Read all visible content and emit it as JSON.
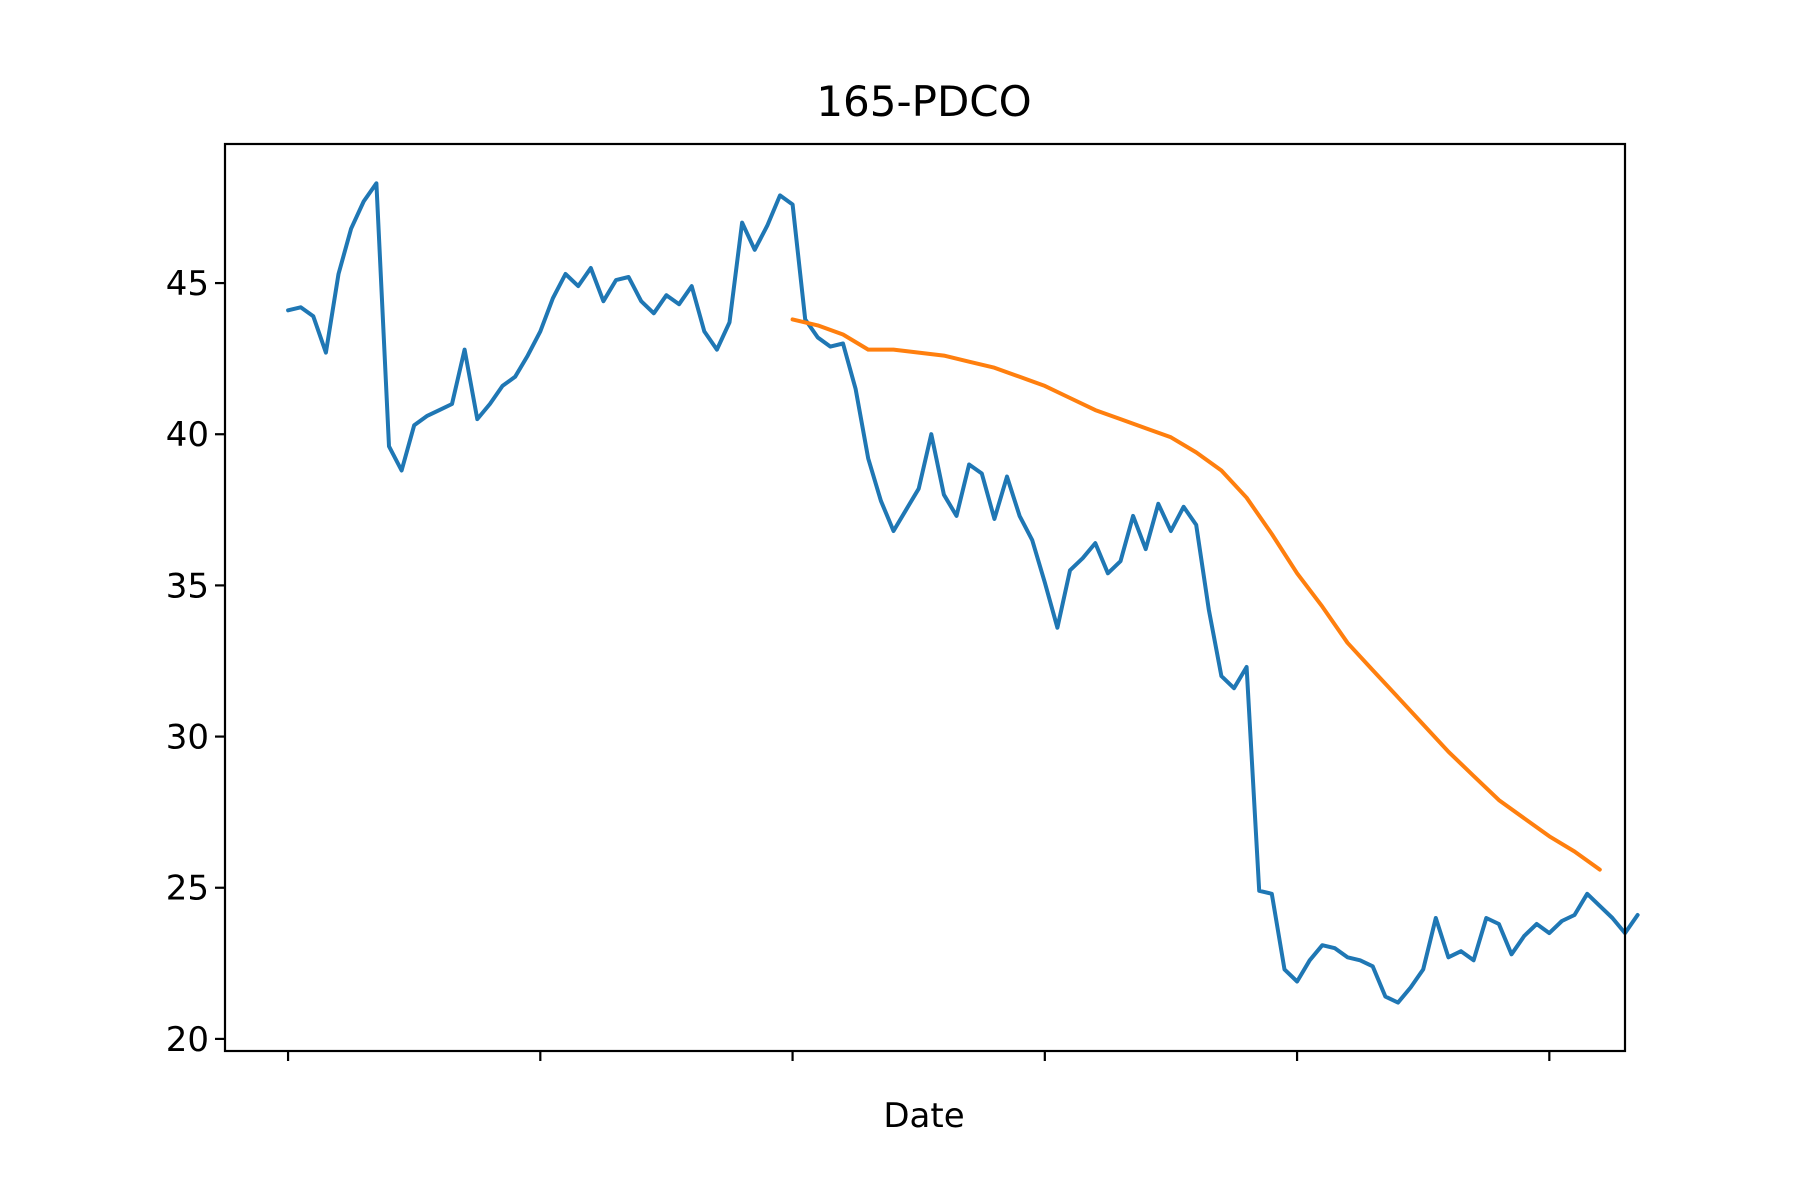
{
  "chart_data": {
    "type": "line",
    "title": "165-PDCO",
    "xlabel": "Date",
    "ylabel": "",
    "ylim": [
      19.6,
      49.6
    ],
    "yticks": [
      20,
      25,
      30,
      35,
      40,
      45
    ],
    "xlim": [
      -25,
      530
    ],
    "xticks": [
      0,
      100,
      200,
      300,
      400,
      500
    ],
    "xtick_labels": [
      "",
      "",
      "",
      "",
      "",
      ""
    ],
    "grid": false,
    "colors": {
      "price": "#1f77b4",
      "moving_average": "#ff7f0e"
    },
    "series": [
      {
        "name": "price",
        "x_start": 0,
        "x_step": 5,
        "values": [
          44.1,
          44.2,
          43.9,
          42.7,
          45.3,
          46.8,
          47.7,
          48.3,
          39.6,
          38.8,
          40.3,
          40.6,
          40.8,
          41.0,
          42.8,
          40.5,
          41.0,
          41.6,
          41.9,
          42.6,
          43.4,
          44.5,
          45.3,
          44.9,
          45.5,
          44.4,
          45.1,
          45.2,
          44.4,
          44.0,
          44.6,
          44.3,
          44.9,
          43.4,
          42.8,
          43.7,
          47.0,
          46.1,
          46.9,
          47.9,
          47.6,
          43.8,
          43.2,
          42.9,
          43.0,
          41.5,
          39.2,
          37.8,
          36.8,
          37.5,
          38.2,
          40.0,
          38.0,
          37.3,
          39.0,
          38.7,
          37.2,
          38.6,
          37.3,
          36.5,
          35.1,
          33.6,
          35.5,
          35.9,
          36.4,
          35.4,
          35.8,
          37.3,
          36.2,
          37.7,
          36.8,
          37.6,
          37.0,
          34.2,
          32.0,
          31.6,
          32.3,
          24.9,
          24.8,
          22.3,
          21.9,
          22.6,
          23.1,
          23.0,
          22.7,
          22.6,
          22.4,
          21.4,
          21.2,
          21.7,
          22.3,
          24.0,
          22.7,
          22.9,
          22.6,
          24.0,
          23.8,
          22.8,
          23.4,
          23.8,
          23.5,
          23.9,
          24.1,
          24.8,
          24.4,
          24.0,
          23.5,
          24.1
        ]
      },
      {
        "name": "moving_average",
        "x_start": 200,
        "x_step": 10,
        "values": [
          43.8,
          43.6,
          43.3,
          42.8,
          42.8,
          42.7,
          42.6,
          42.4,
          42.2,
          41.9,
          41.6,
          41.2,
          40.8,
          40.5,
          40.2,
          39.9,
          39.4,
          38.8,
          37.9,
          36.7,
          35.4,
          34.3,
          33.1,
          32.2,
          31.3,
          30.4,
          29.5,
          28.7,
          27.9,
          27.3,
          26.7,
          26.2,
          25.6
        ]
      }
    ]
  }
}
